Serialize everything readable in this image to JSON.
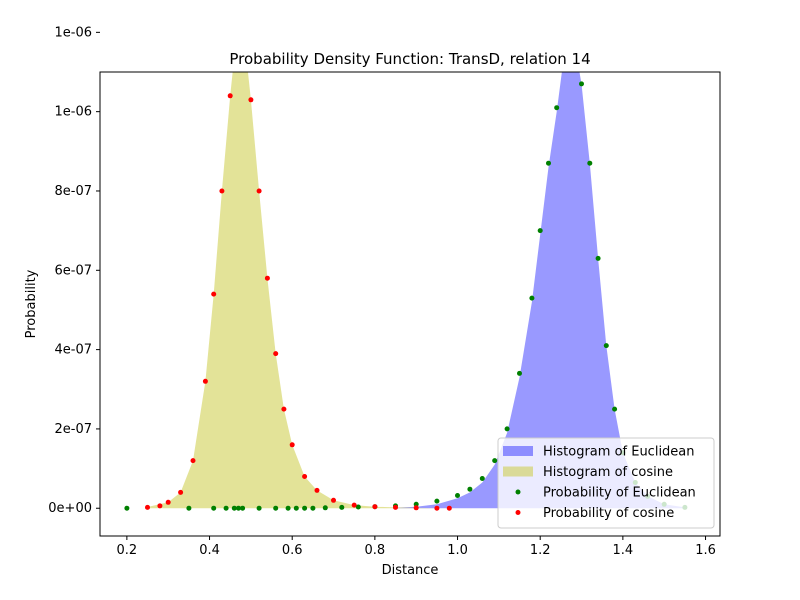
{
  "chart_data": {
    "type": "area",
    "title": "Probability Density Function: TransD, relation 14",
    "xlabel": "Distance",
    "ylabel": "Probability",
    "xlim": [
      0.135,
      1.635
    ],
    "ylim": [
      -7e-08,
      1.1e-06
    ],
    "x_ticks": [
      {
        "value": 0.2,
        "label": "0.2"
      },
      {
        "value": 0.4,
        "label": "0.4"
      },
      {
        "value": 0.6,
        "label": "0.6"
      },
      {
        "value": 0.8,
        "label": "0.8"
      },
      {
        "value": 1.0,
        "label": "1.0"
      },
      {
        "value": 1.2,
        "label": "1.2"
      },
      {
        "value": 1.4,
        "label": "1.4"
      },
      {
        "value": 1.6,
        "label": "1.6"
      }
    ],
    "y_ticks": [
      {
        "value": 0,
        "label": "0e+00"
      },
      {
        "value": 2e-07,
        "label": "2e-07"
      },
      {
        "value": 4e-07,
        "label": "4e-07"
      },
      {
        "value": 6e-07,
        "label": "6e-07"
      },
      {
        "value": 8e-07,
        "label": "8e-07"
      },
      {
        "value": 1e-06,
        "label": "1e-06"
      },
      {
        "value": 1.2e-06,
        "label": "1e-06"
      }
    ],
    "grid": false,
    "legend_position": "lower-right",
    "series": [
      {
        "name": "Histogram of Euclidean",
        "kind": "histogram",
        "color": "#0000ff",
        "opacity": 0.4,
        "x": [
          0.85,
          0.9,
          0.95,
          1.0,
          1.03,
          1.06,
          1.09,
          1.12,
          1.15,
          1.18,
          1.2,
          1.22,
          1.24,
          1.26,
          1.27,
          1.28,
          1.3,
          1.32,
          1.34,
          1.36,
          1.38,
          1.4,
          1.43,
          1.46,
          1.5,
          1.55
        ],
        "y": [
          1e-09,
          4e-09,
          1e-08,
          2.5e-08,
          4e-08,
          6.5e-08,
          1.1e-07,
          1.9e-07,
          3.3e-07,
          5.2e-07,
          6.9e-07,
          8.6e-07,
          1e-06,
          1.16e-06,
          1.2e-06,
          1.19e-06,
          1.07e-06,
          8.7e-07,
          6.3e-07,
          4.1e-07,
          2.5e-07,
          1.4e-07,
          6.5e-08,
          3e-08,
          1e-08,
          2e-09
        ]
      },
      {
        "name": "Histogram of cosine",
        "kind": "histogram",
        "color": "#cccc44",
        "opacity": 0.55,
        "x": [
          0.25,
          0.3,
          0.33,
          0.36,
          0.39,
          0.41,
          0.43,
          0.45,
          0.46,
          0.47,
          0.48,
          0.49,
          0.5,
          0.52,
          0.54,
          0.56,
          0.58,
          0.6,
          0.63,
          0.66,
          0.7,
          0.75,
          0.8,
          0.85,
          0.9,
          0.95
        ],
        "y": [
          3e-09,
          1.5e-08,
          4e-08,
          1.2e-07,
          3.2e-07,
          5.4e-07,
          8e-07,
          1.04e-06,
          1.14e-06,
          1.2e-06,
          1.19e-06,
          1.13e-06,
          1.03e-06,
          8e-07,
          5.8e-07,
          3.9e-07,
          2.5e-07,
          1.6e-07,
          8e-08,
          4.5e-08,
          2e-08,
          8e-09,
          4e-09,
          2e-09,
          1e-09,
          0
        ]
      },
      {
        "name": "Probability of Euclidean",
        "kind": "scatter",
        "color": "#008000",
        "x": [
          0.2,
          0.35,
          0.41,
          0.44,
          0.46,
          0.47,
          0.48,
          0.52,
          0.56,
          0.59,
          0.61,
          0.63,
          0.65,
          0.68,
          0.72,
          0.76,
          0.8,
          0.85,
          0.9,
          0.95,
          1.0,
          1.03,
          1.06,
          1.09,
          1.12,
          1.15,
          1.18,
          1.2,
          1.22,
          1.24,
          1.26,
          1.27,
          1.28,
          1.3,
          1.32,
          1.34,
          1.36,
          1.38,
          1.4,
          1.43,
          1.46,
          1.5,
          1.55
        ],
        "y": [
          0,
          0,
          0,
          0,
          0,
          0,
          0,
          0,
          0,
          0,
          0,
          0,
          0,
          1e-09,
          2e-09,
          3e-09,
          4e-09,
          6e-09,
          1e-08,
          1.8e-08,
          3.2e-08,
          4.8e-08,
          7.5e-08,
          1.2e-07,
          2e-07,
          3.4e-07,
          5.3e-07,
          7e-07,
          8.7e-07,
          1.01e-06,
          1.16e-06,
          1.2e-06,
          1.19e-06,
          1.07e-06,
          8.7e-07,
          6.3e-07,
          4.1e-07,
          2.5e-07,
          1.4e-07,
          6.5e-08,
          3e-08,
          1e-08,
          2e-09
        ]
      },
      {
        "name": "Probability of cosine",
        "kind": "scatter",
        "color": "#ff0000",
        "x": [
          0.25,
          0.28,
          0.3,
          0.33,
          0.36,
          0.39,
          0.41,
          0.43,
          0.45,
          0.46,
          0.47,
          0.48,
          0.49,
          0.5,
          0.52,
          0.54,
          0.56,
          0.58,
          0.6,
          0.63,
          0.66,
          0.7,
          0.75,
          0.8,
          0.85,
          0.9,
          0.95,
          0.98
        ],
        "y": [
          2e-09,
          6e-09,
          1.5e-08,
          4e-08,
          1.2e-07,
          3.2e-07,
          5.4e-07,
          8e-07,
          1.04e-06,
          1.14e-06,
          1.2e-06,
          1.19e-06,
          1.13e-06,
          1.03e-06,
          8e-07,
          5.8e-07,
          3.9e-07,
          2.5e-07,
          1.6e-07,
          8e-08,
          4.5e-08,
          2e-08,
          8e-09,
          4e-09,
          2e-09,
          1e-09,
          0,
          0
        ]
      }
    ]
  }
}
